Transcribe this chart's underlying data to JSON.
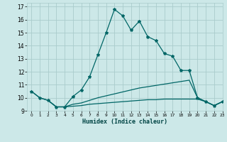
{
  "title": "",
  "xlabel": "Humidex (Indice chaleur)",
  "background_color": "#cce8e8",
  "grid_color": "#aacccc",
  "line_color": "#006666",
  "xlim": [
    -0.5,
    23
  ],
  "ylim": [
    9,
    17.3
  ],
  "x_ticks": [
    0,
    1,
    2,
    3,
    4,
    5,
    6,
    7,
    8,
    9,
    10,
    11,
    12,
    13,
    14,
    15,
    16,
    17,
    18,
    19,
    20,
    21,
    22,
    23
  ],
  "y_ticks": [
    9,
    10,
    11,
    12,
    13,
    14,
    15,
    16,
    17
  ],
  "curve1_x": [
    0,
    1,
    2,
    3,
    4,
    5,
    6,
    7,
    8,
    9,
    10,
    11,
    12,
    13,
    14,
    15,
    16,
    17,
    18,
    19,
    20,
    21,
    22,
    23
  ],
  "curve1_y": [
    10.5,
    10.0,
    9.8,
    9.3,
    9.3,
    10.1,
    10.6,
    11.6,
    13.3,
    15.0,
    16.8,
    16.3,
    15.2,
    15.9,
    14.7,
    14.4,
    13.4,
    13.2,
    12.1,
    12.1,
    10.0,
    9.7,
    9.4,
    9.7
  ],
  "curve2_x": [
    0,
    1,
    2,
    3,
    4,
    5,
    6,
    7,
    8,
    9,
    10,
    11,
    12,
    13,
    14,
    15,
    16,
    17,
    18,
    19,
    20,
    21,
    22,
    23
  ],
  "curve2_y": [
    10.5,
    10.0,
    9.8,
    9.3,
    9.3,
    9.5,
    9.6,
    9.8,
    10.0,
    10.15,
    10.3,
    10.45,
    10.6,
    10.75,
    10.85,
    10.95,
    11.05,
    11.15,
    11.25,
    11.35,
    10.0,
    9.7,
    9.4,
    9.7
  ],
  "curve3_x": [
    2,
    3,
    4,
    5,
    6,
    7,
    8,
    9,
    10,
    11,
    12,
    13,
    14,
    15,
    16,
    17,
    18,
    19,
    20,
    21,
    22,
    23
  ],
  "curve3_y": [
    9.8,
    9.3,
    9.3,
    9.35,
    9.4,
    9.5,
    9.55,
    9.6,
    9.65,
    9.7,
    9.75,
    9.8,
    9.85,
    9.85,
    9.9,
    9.9,
    9.9,
    9.9,
    9.9,
    9.7,
    9.4,
    9.7
  ]
}
